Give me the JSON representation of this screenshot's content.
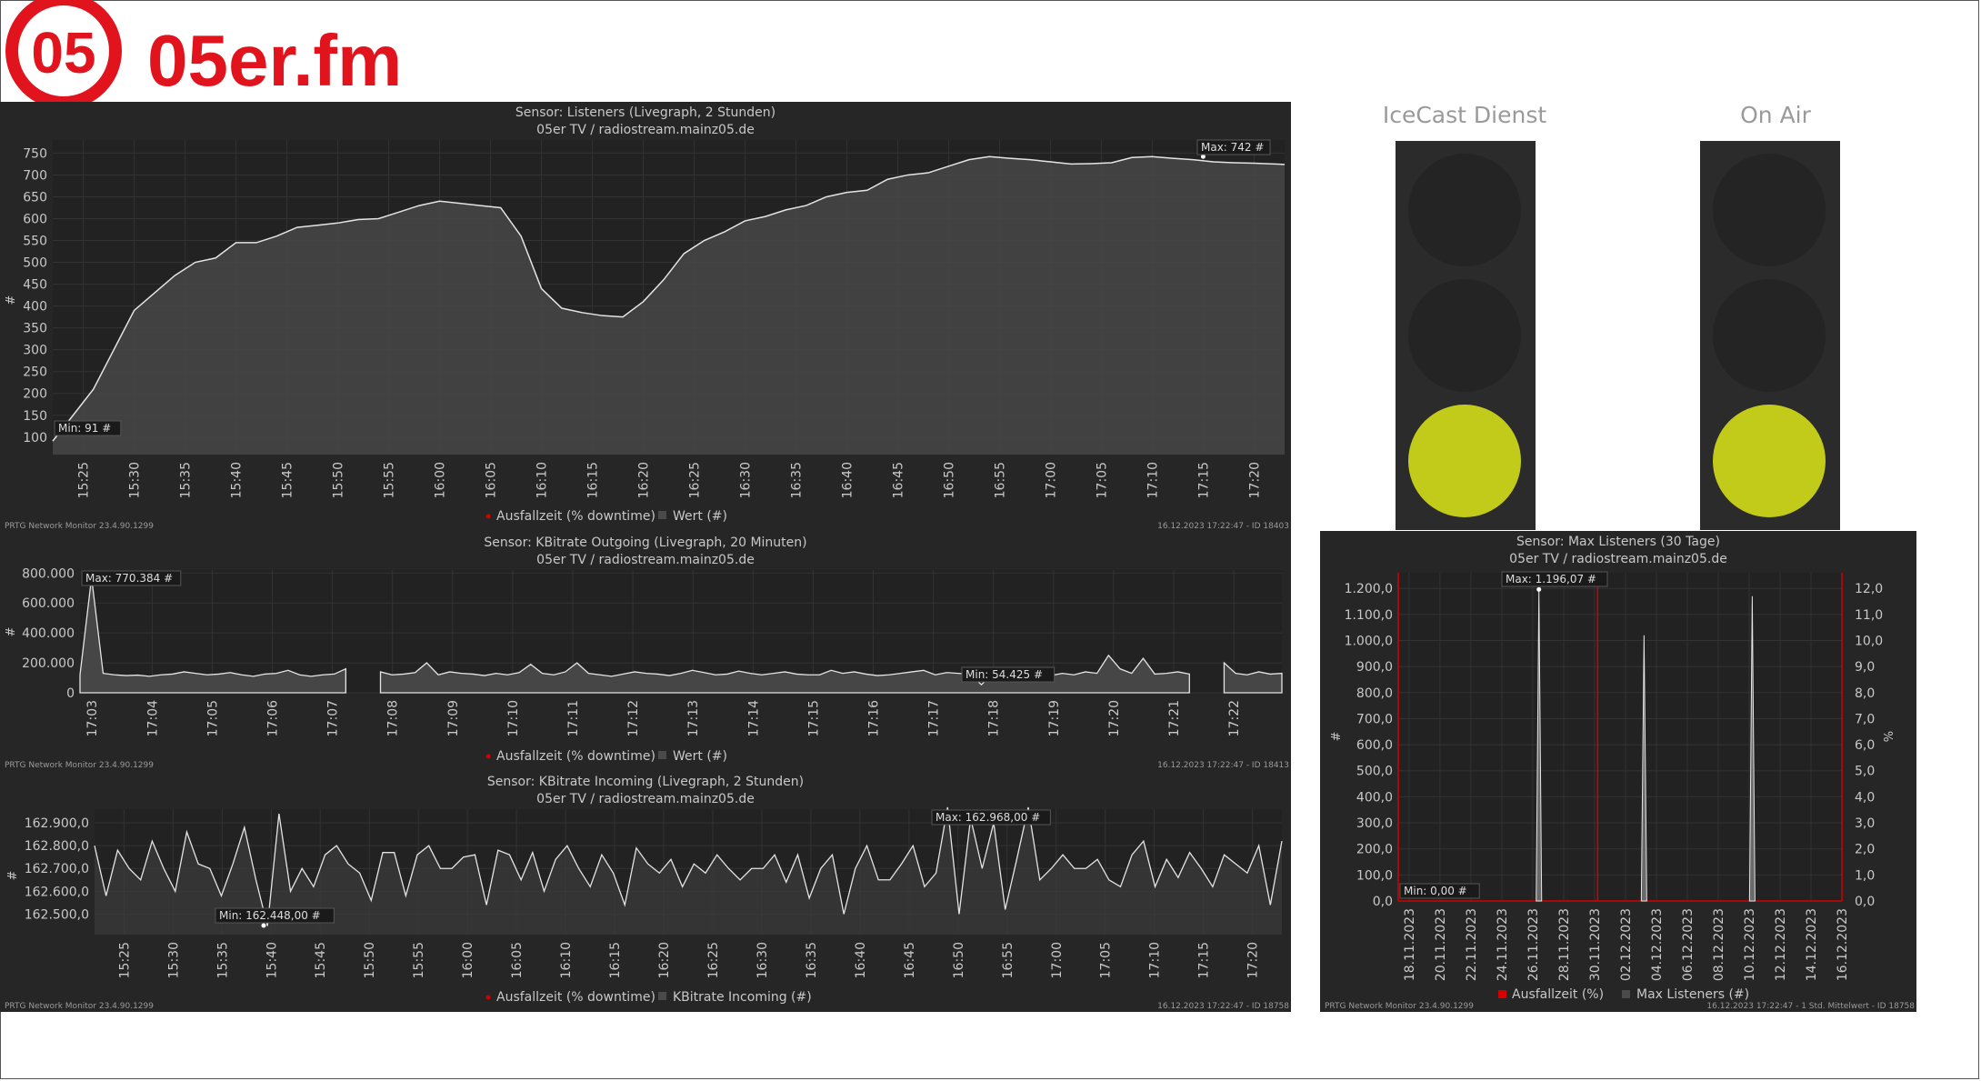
{
  "logo": {
    "text": "05er.fm",
    "badge": "05",
    "color": "#e1141e"
  },
  "colors": {
    "panel_bg": "#262626",
    "plot_bg": "#222222",
    "line": "#e4e4e4",
    "fill": "#464646",
    "grid": "#333333",
    "text": "#c8c8c8",
    "downtime": "#d40000",
    "lamp_on": "#c2cb1a"
  },
  "footer_left": "PRTG Network Monitor 23.4.90.1299",
  "legend_downtime": "Ausfallzeit (% downtime)",
  "chart_data": [
    {
      "id": "listeners",
      "type": "area",
      "title": "Sensor: Listeners (Livegraph, 2 Stunden)",
      "subtitle": "05er TV / radiostream.mainz05.de",
      "ylabel": "#",
      "ylim": [
        60,
        780
      ],
      "yticks": [
        "100",
        "150",
        "200",
        "250",
        "300",
        "350",
        "400",
        "450",
        "500",
        "550",
        "600",
        "650",
        "700",
        "750"
      ],
      "xticks": [
        "15:25",
        "15:30",
        "15:35",
        "15:40",
        "15:45",
        "15:50",
        "15:55",
        "16:00",
        "16:05",
        "16:10",
        "16:15",
        "16:20",
        "16:25",
        "16:30",
        "16:35",
        "16:40",
        "16:45",
        "16:50",
        "16:55",
        "17:00",
        "17:05",
        "17:10",
        "17:15",
        "17:20"
      ],
      "x_range_minutes": [
        922,
        1043
      ],
      "series": [
        {
          "x": [
            922,
            924,
            926,
            928,
            930,
            932,
            934,
            936,
            938,
            940,
            942,
            944,
            946,
            948,
            950,
            952,
            954,
            956,
            958,
            960,
            962,
            964,
            966,
            968,
            970,
            972,
            974,
            976,
            978,
            980,
            982,
            984,
            986,
            988,
            990,
            992,
            994,
            996,
            998,
            1000,
            1002,
            1004,
            1006,
            1008,
            1010,
            1012,
            1014,
            1016,
            1018,
            1020,
            1022,
            1024,
            1026,
            1028,
            1030,
            1032,
            1034,
            1036,
            1038,
            1040,
            1042,
            1043
          ],
          "y": [
            91,
            150,
            210,
            300,
            390,
            430,
            470,
            500,
            510,
            545,
            545,
            560,
            580,
            585,
            590,
            598,
            600,
            615,
            630,
            640,
            635,
            630,
            625,
            560,
            440,
            395,
            385,
            378,
            375,
            410,
            460,
            520,
            550,
            570,
            595,
            605,
            620,
            630,
            650,
            660,
            665,
            690,
            700,
            705,
            720,
            735,
            742,
            738,
            735,
            730,
            725,
            726,
            728,
            740,
            742,
            738,
            735,
            730,
            728,
            727,
            725,
            724
          ]
        }
      ],
      "legend_series": "Wert (#)",
      "min_label": "Min: 91 #",
      "max_label": "Max: 742 #",
      "footer_right": "16.12.2023 17:22:47 - ID 18403"
    },
    {
      "id": "kbitrate_out",
      "type": "area",
      "title": "Sensor: KBitrate Outgoing (Livegraph, 20 Minuten)",
      "subtitle": "05er TV / radiostream.mainz05.de",
      "ylabel": "#",
      "ylim": [
        0,
        820000
      ],
      "yticks": [
        "0",
        "200.000",
        "400.000",
        "600.000",
        "800.000"
      ],
      "xticks": [
        "17:03",
        "17:04",
        "17:05",
        "17:06",
        "17:07",
        "17:08",
        "17:09",
        "17:10",
        "17:11",
        "17:12",
        "17:13",
        "17:14",
        "17:15",
        "17:16",
        "17:17",
        "17:18",
        "17:19",
        "17:20",
        "17:21",
        "17:22"
      ],
      "x_range_minutes": [
        1022.8,
        1042.8
      ],
      "gaps_minutes": [
        [
          1027.3,
          1027.8
        ],
        [
          1041.4,
          1041.8
        ]
      ],
      "series": [
        {
          "values_k": [
            120,
            770,
            130,
            120,
            115,
            118,
            110,
            120,
            125,
            140,
            130,
            120,
            125,
            135,
            120,
            110,
            125,
            130,
            150,
            120,
            110,
            120,
            125,
            160,
            120,
            130,
            140,
            120,
            125,
            135,
            200,
            120,
            140,
            130,
            125,
            115,
            130,
            120,
            135,
            190,
            130,
            120,
            140,
            200,
            130,
            120,
            110,
            125,
            140,
            130,
            125,
            115,
            130,
            150,
            135,
            120,
            125,
            145,
            130,
            120,
            130,
            140,
            125,
            120,
            120,
            150,
            130,
            140,
            125,
            115,
            120,
            130,
            140,
            150,
            120,
            135,
            130,
            125,
            54,
            130,
            120,
            140,
            130,
            125,
            115,
            130,
            120,
            140,
            130,
            250,
            160,
            130,
            230,
            125,
            130,
            140,
            125,
            130,
            150,
            200,
            130,
            120,
            140,
            125,
            130
          ],
          "note": "values in thousands"
        }
      ],
      "legend_series": "Wert (#)",
      "min_label": "Min: 54.425 #",
      "max_label": "Max: 770.384 #",
      "footer_right": "16.12.2023 17:22:47 - ID 18413"
    },
    {
      "id": "kbitrate_in",
      "type": "line",
      "title": "Sensor: KBitrate Incoming (Livegraph, 2 Stunden)",
      "subtitle": "05er TV / radiostream.mainz05.de",
      "ylabel": "#",
      "ylim": [
        162410,
        162960
      ],
      "yticks": [
        "162.500,0",
        "162.600,0",
        "162.700,0",
        "162.800,0",
        "162.900,0"
      ],
      "xticks": [
        "15:25",
        "15:30",
        "15:35",
        "15:40",
        "15:45",
        "15:50",
        "15:55",
        "16:00",
        "16:05",
        "16:10",
        "16:15",
        "16:20",
        "16:25",
        "16:30",
        "16:35",
        "16:40",
        "16:45",
        "16:50",
        "16:55",
        "17:00",
        "17:05",
        "17:10",
        "17:15",
        "17:20"
      ],
      "x_range_minutes": [
        922,
        1043
      ],
      "series": [
        {
          "values": [
            162800,
            162580,
            162780,
            162700,
            162650,
            162820,
            162700,
            162600,
            162860,
            162720,
            162700,
            162580,
            162720,
            162880,
            162650,
            162448,
            162940,
            162600,
            162700,
            162620,
            162760,
            162800,
            162720,
            162680,
            162560,
            162770,
            162770,
            162580,
            162760,
            162800,
            162700,
            162700,
            162750,
            162760,
            162540,
            162780,
            162760,
            162650,
            162770,
            162600,
            162740,
            162800,
            162700,
            162620,
            162760,
            162680,
            162540,
            162790,
            162720,
            162680,
            162740,
            162620,
            162720,
            162680,
            162760,
            162700,
            162650,
            162700,
            162700,
            162760,
            162640,
            162760,
            162570,
            162700,
            162760,
            162500,
            162700,
            162800,
            162650,
            162650,
            162720,
            162800,
            162620,
            162680,
            162968,
            162500,
            162920,
            162700,
            162900,
            162520,
            162740,
            162968,
            162650,
            162700,
            162760,
            162700,
            162700,
            162740,
            162650,
            162620,
            162760,
            162820,
            162620,
            162740,
            162660,
            162770,
            162700,
            162620,
            162760,
            162720,
            162680,
            162800,
            162540,
            162820
          ]
        }
      ],
      "legend_series": "KBitrate Incoming (#)",
      "min_label": "Min: 162.448,00 #",
      "max_label": "Max: 162.968,00 #",
      "footer_right": "16.12.2023 17:22:47 - ID 18758"
    },
    {
      "id": "max_listeners",
      "type": "line",
      "title": "Sensor: Max Listeners (30 Tage)",
      "subtitle": "05er TV / radiostream.mainz05.de",
      "ylabel": "#",
      "y2label": "%",
      "ylim": [
        0,
        1260
      ],
      "y2lim": [
        0,
        12.6
      ],
      "yticks": [
        "0,0",
        "100,0",
        "200,0",
        "300,0",
        "400,0",
        "500,0",
        "600,0",
        "700,0",
        "800,0",
        "900,0",
        "1.000,0",
        "1.100,0",
        "1.200,0"
      ],
      "y2ticks": [
        "0,0",
        "1,0",
        "2,0",
        "3,0",
        "4,0",
        "5,0",
        "6,0",
        "7,0",
        "8,0",
        "9,0",
        "10,0",
        "11,0",
        "12,0"
      ],
      "xticks": [
        "18.11.2023",
        "20.11.2023",
        "22.11.2023",
        "24.11.2023",
        "26.11.2023",
        "28.11.2023",
        "30.11.2023",
        "02.12.2023",
        "04.12.2023",
        "06.12.2023",
        "08.12.2023",
        "10.12.2023",
        "12.12.2023",
        "14.12.2023",
        "16.12.2023"
      ],
      "x_range_days": [
        0,
        28.7
      ],
      "spikes": [
        {
          "day": 9.1,
          "value": 1196
        },
        {
          "day": 15.9,
          "value": 1020
        },
        {
          "day": 22.9,
          "value": 1170
        }
      ],
      "downtime_marker_day": 12.9,
      "legend_downtime": "Ausfallzeit (%)",
      "legend_series": "Max Listeners (#)",
      "min_label": "Min: 0,00 #",
      "max_label": "Max: 1.196,07 #",
      "footer_right": "16.12.2023 17:22:47 - 1 Std. Mittelwert - ID 18758"
    }
  ],
  "traffic_lights": [
    {
      "title": "IceCast Dienst",
      "state": "on",
      "active_lamp": 3
    },
    {
      "title": "On Air",
      "state": "on",
      "active_lamp": 3
    }
  ]
}
